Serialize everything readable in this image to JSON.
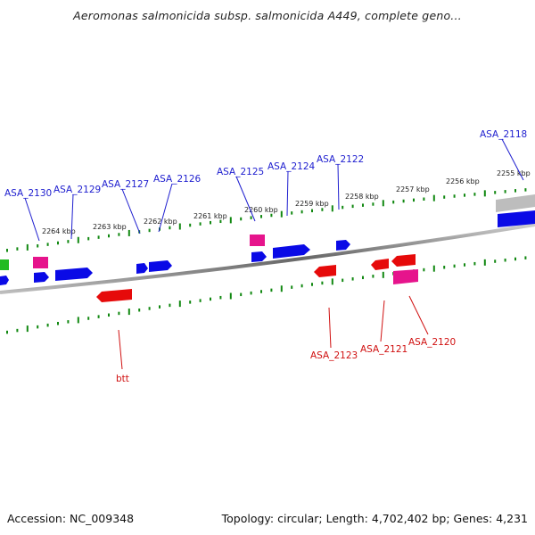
{
  "title": "Aeromonas salmonicida subsp. salmonicida A449, complete geno...",
  "footer": {
    "accession": "Accession: NC_009348",
    "stats": "Topology: circular; Length: 4,702,402 bp; Genes: 4,231"
  },
  "scale_labels": [
    "2264 kbp",
    "2263 kbp",
    "2262 kbp",
    "2261 kbp",
    "2260 kbp",
    "2259 kbp",
    "2258 kbp",
    "2257 kbp",
    "2256 kbp",
    "2255 kbp"
  ],
  "forward_gene_labels": [
    "ASA_2130",
    "ASA_2129",
    "ASA_2127",
    "ASA_2126",
    "ASA_2125",
    "ASA_2124",
    "ASA_2122",
    "ASA_2118"
  ],
  "reverse_gene_labels": [
    "btt",
    "ASA_2123",
    "ASA_2121",
    "ASA_2120"
  ],
  "colors": {
    "forward_cds": "#0a0ae6",
    "reverse_cds": "#e60a0a",
    "pink_feature": "#e6148c",
    "green_feature": "#22bb22",
    "ticks": "#118811",
    "backbone": "#777777"
  }
}
